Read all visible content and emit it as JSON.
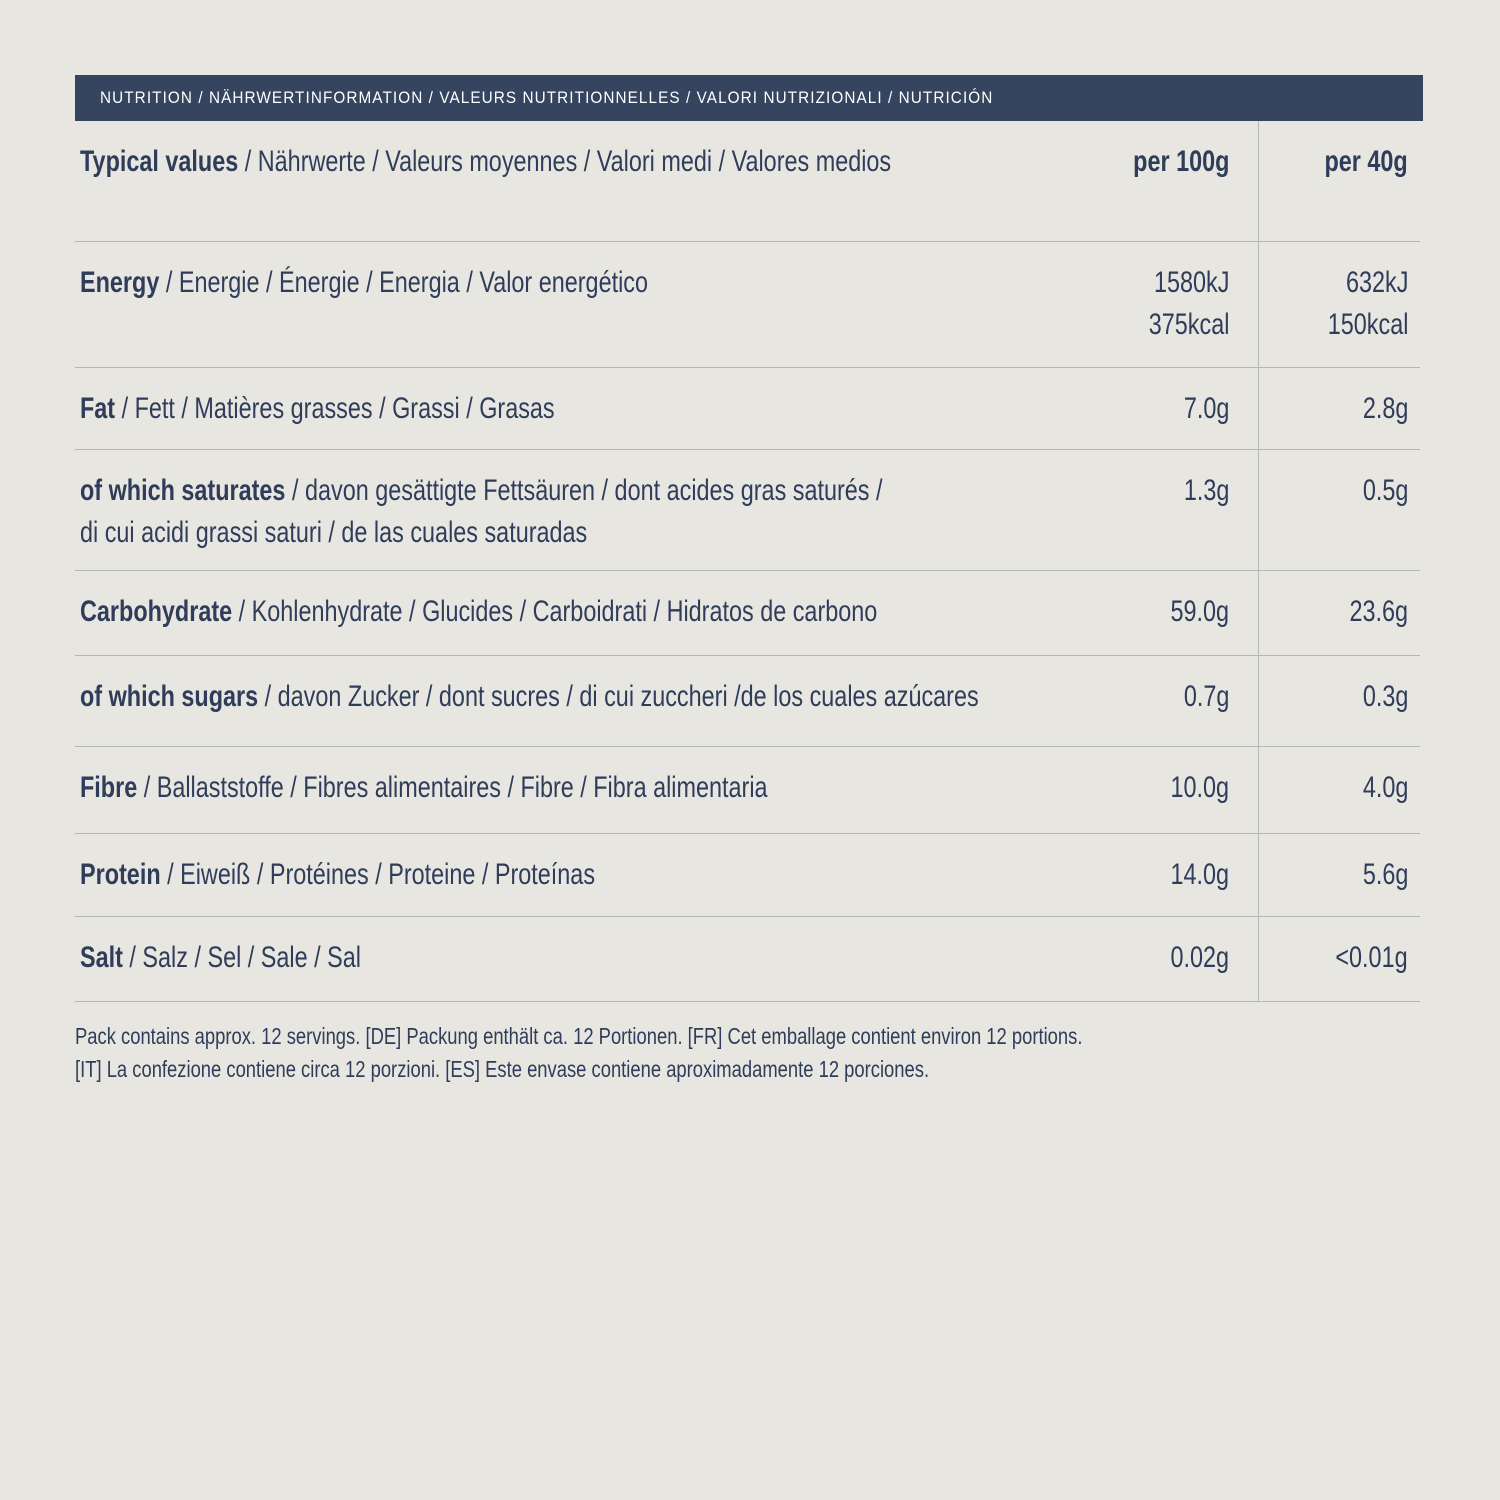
{
  "header": {
    "title": "NUTRITION / NÄHRWERTINFORMATION / VALEURS NUTRITIONNELLES / VALORI NUTRIZIONALI / NUTRICIÓN"
  },
  "table": {
    "head": {
      "bold": "Typical values",
      "rest": [
        "/ Nährwerte / Valeurs moyennes / Valori medi / Valores medios"
      ],
      "per100": [
        "per 100g"
      ],
      "per40": [
        "per 40g"
      ]
    },
    "rows": [
      {
        "bold": "Energy",
        "rest": [
          "/ Energie / Énergie / Energia / Valor energético"
        ],
        "per100": [
          "1580kJ",
          "375kcal"
        ],
        "per40": [
          "632kJ",
          "150kcal"
        ]
      },
      {
        "bold": "Fat",
        "rest": [
          "/ Fett / Matières grasses / Grassi / Grasas"
        ],
        "per100": [
          "7.0g"
        ],
        "per40": [
          "2.8g"
        ]
      },
      {
        "bold": "of which saturates",
        "rest": [
          "/ davon gesättigte Fettsäuren / dont acides gras saturés /",
          "di cui acidi grassi saturi / de las cuales saturadas"
        ],
        "per100": [
          "1.3g"
        ],
        "per40": [
          "0.5g"
        ]
      },
      {
        "bold": "Carbohydrate",
        "rest": [
          "/ Kohlenhydrate / Glucides / Carboidrati / Hidratos de carbono"
        ],
        "per100": [
          "59.0g"
        ],
        "per40": [
          "23.6g"
        ]
      },
      {
        "bold": "of which sugars",
        "rest": [
          "/ davon Zucker / dont sucres / di cui zuccheri /de los cuales azúcares"
        ],
        "per100": [
          "0.7g"
        ],
        "per40": [
          "0.3g"
        ]
      },
      {
        "bold": "Fibre",
        "rest": [
          "/ Ballaststoffe / Fibres alimentaires / Fibre / Fibra alimentaria"
        ],
        "per100": [
          "10.0g"
        ],
        "per40": [
          "4.0g"
        ]
      },
      {
        "bold": "Protein",
        "rest": [
          "/ Eiweiß / Protéines / Proteine / Proteínas"
        ],
        "per100": [
          "14.0g"
        ],
        "per40": [
          "5.6g"
        ]
      },
      {
        "bold": "Salt",
        "rest": [
          "/ Salz / Sel / Sale / Sal"
        ],
        "per100": [
          "0.02g"
        ],
        "per40": [
          "<0.01g"
        ]
      }
    ]
  },
  "footer": {
    "lines": [
      "Pack contains approx. 12 servings. [DE] Packung enthält ca. 12 Portionen. [FR] Cet emballage contient environ 12 portions.",
      "[IT] La confezione contiene circa 12 porzioni. [ES] Este envase contiene aproximadamente 12 porciones."
    ]
  }
}
